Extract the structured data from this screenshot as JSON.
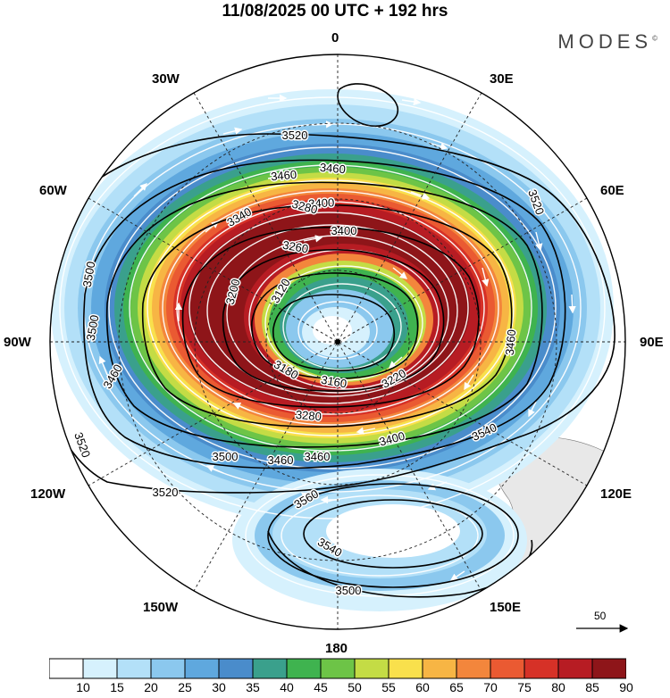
{
  "header": {
    "title": "11/08/2025  00 UTC  + 192 hrs",
    "brand": "MODES",
    "brand_mark": "©"
  },
  "map": {
    "projection": "south-polar-stereographic",
    "longitude_labels": {
      "top": "0",
      "top_right": "30E",
      "upper_right": "60E",
      "right": "90E",
      "lower_right": "120E",
      "bottom_right": "150E",
      "bottom": "180",
      "bottom_left": "150W",
      "lower_left": "120W",
      "left": "90W",
      "upper_left": "60W",
      "top_left": "30W"
    },
    "contour_labels": [
      "3520",
      "3460",
      "3460",
      "3400",
      "3400",
      "3340",
      "3280",
      "3260",
      "3200",
      "3120",
      "3180",
      "3160",
      "3220",
      "3280",
      "3400",
      "3460",
      "3460",
      "3500",
      "3500",
      "3500",
      "3520",
      "3520",
      "3520",
      "3540",
      "3560",
      "3540",
      "3500",
      "3460",
      "3460"
    ],
    "vector_reference": "50"
  },
  "colorbar": {
    "ticks": [
      "10",
      "15",
      "20",
      "25",
      "30",
      "35",
      "40",
      "45",
      "50",
      "55",
      "60",
      "65",
      "70",
      "75",
      "80",
      "85",
      "90"
    ],
    "colors": [
      "#ffffff",
      "#d6f1fd",
      "#b3e0f8",
      "#8bc8ee",
      "#5fa8de",
      "#4a8ccb",
      "#3aa08c",
      "#3fb34f",
      "#6dc447",
      "#c4dc45",
      "#f9e04c",
      "#f7b544",
      "#f3863c",
      "#ea5a32",
      "#d63127",
      "#b71c23",
      "#8e1519"
    ]
  }
}
